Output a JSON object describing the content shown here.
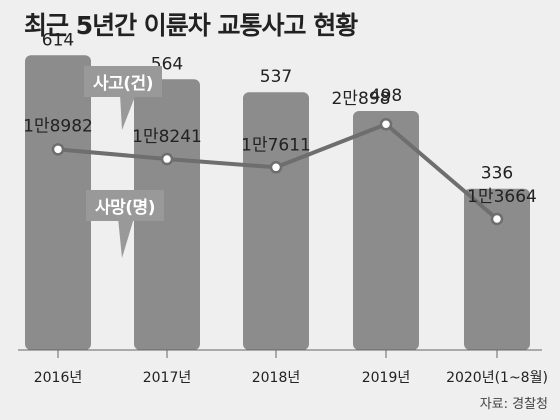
{
  "title": "최근 5년간 이륜차 교통사고 현황",
  "source": "자료: 경찰청",
  "colors": {
    "background": "#efefef",
    "bar": "#8c8c8c",
    "line": "#6e6e6e",
    "tag": "#999999",
    "text": "#222222"
  },
  "chart_data": {
    "type": "bar+line",
    "title": "최근 5년간 이륜차 교통사고 현황",
    "categories": [
      "2016년",
      "2017년",
      "2018년",
      "2019년",
      "2020년(1~8월)"
    ],
    "series": [
      {
        "name": "사고(건)",
        "type": "line",
        "values": [
          18982,
          18241,
          17611,
          20898,
          13664
        ],
        "labels": [
          "1만8982",
          "1만8241",
          "1만7611",
          "2만898",
          "1만3664"
        ]
      },
      {
        "name": "사망(명)",
        "type": "bar",
        "values": [
          614,
          564,
          537,
          498,
          336
        ],
        "labels": [
          "614",
          "564",
          "537",
          "498",
          "336"
        ]
      }
    ],
    "grid": false,
    "legend": "inline tags"
  }
}
